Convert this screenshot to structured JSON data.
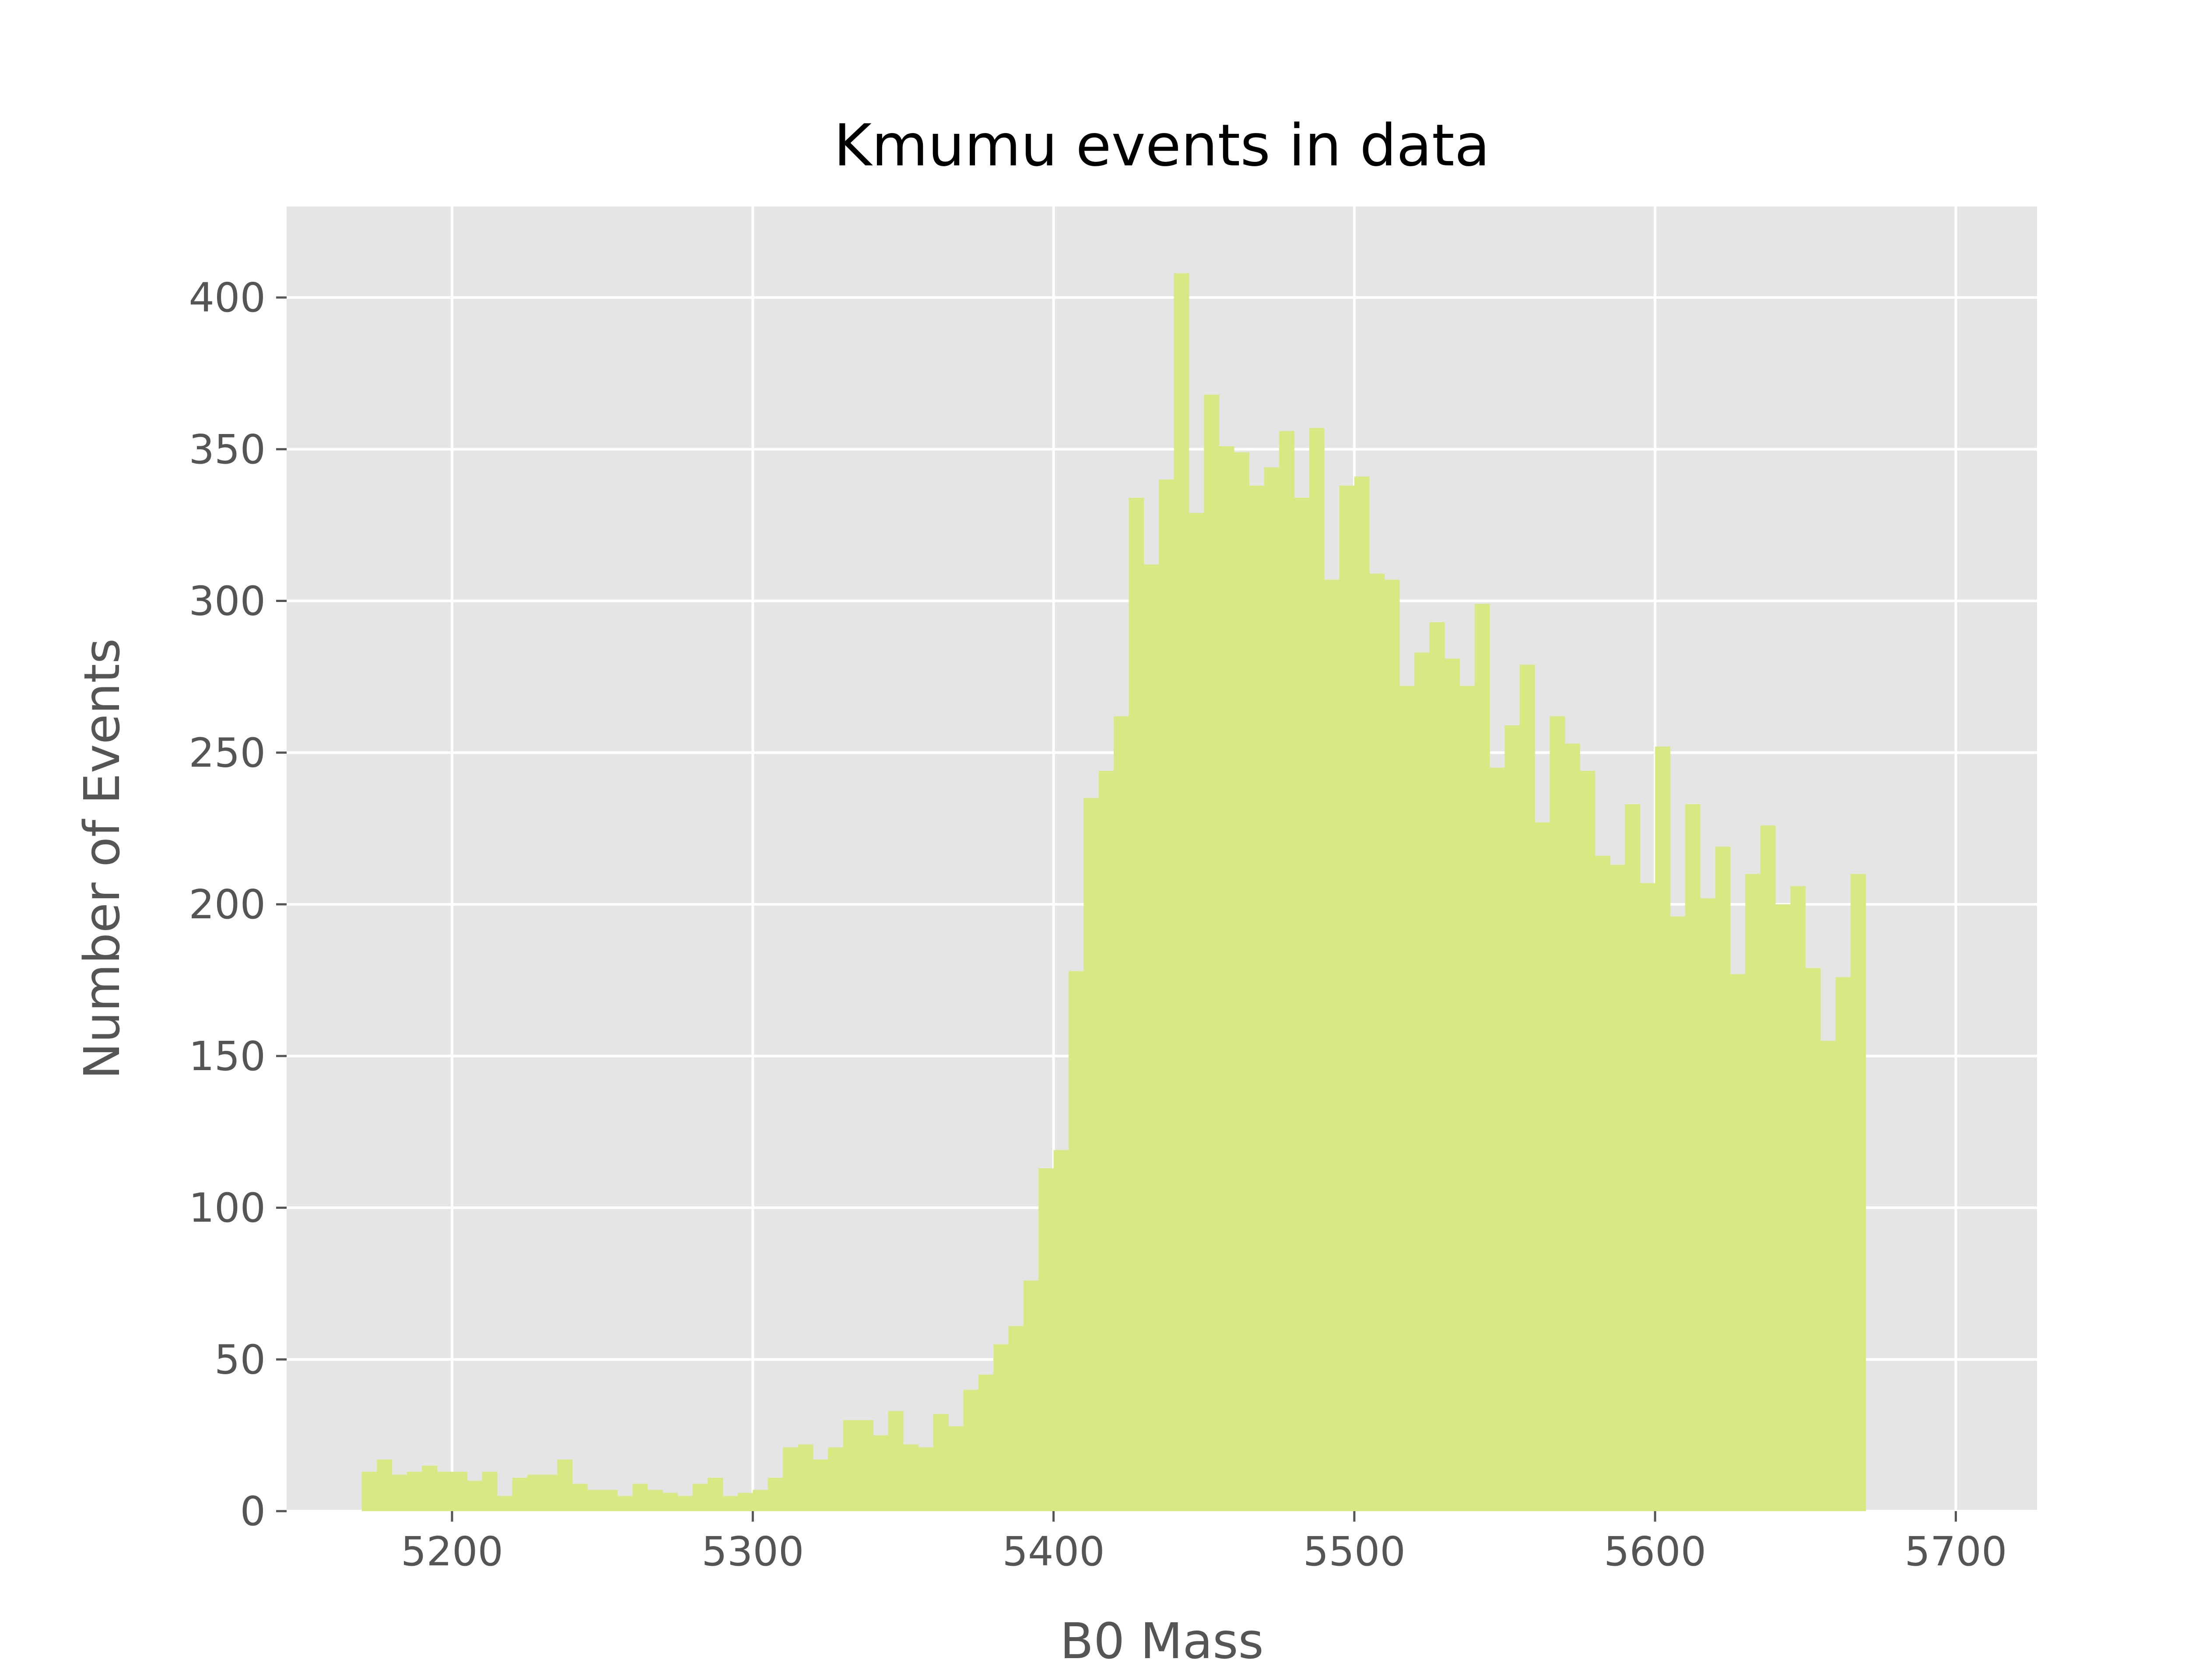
{
  "chart_data": {
    "type": "bar",
    "title": "Kmumu events in data",
    "xlabel": "B0 Mass",
    "ylabel": "Number of Events",
    "xlim": [
      5145,
      5727
    ],
    "ylim": [
      0,
      430
    ],
    "bin_start": 5170,
    "bin_width": 5,
    "grid": true,
    "bar_color": "#d9e882",
    "background_color": "#e5e5e5",
    "grid_color": "#ffffff",
    "xticks": [
      5200,
      5300,
      5400,
      5500,
      5600,
      5700
    ],
    "xtick_labels": [
      "5200",
      "5300",
      "5400",
      "5500",
      "5600",
      "5700"
    ],
    "yticks": [
      0,
      50,
      100,
      150,
      200,
      250,
      300,
      350,
      400
    ],
    "ytick_labels": [
      "0",
      "50",
      "100",
      "150",
      "200",
      "250",
      "300",
      "350",
      "400"
    ],
    "values": [
      13,
      17,
      12,
      13,
      15,
      13,
      13,
      10,
      13,
      5,
      11,
      12,
      12,
      17,
      9,
      7,
      7,
      5,
      9,
      7,
      6,
      5,
      9,
      11,
      5,
      6,
      7,
      11,
      21,
      22,
      17,
      21,
      30,
      30,
      25,
      33,
      22,
      21,
      32,
      28,
      40,
      45,
      55,
      61,
      76,
      113,
      119,
      178,
      235,
      244,
      262,
      334,
      312,
      340,
      408,
      329,
      368,
      351,
      349,
      338,
      344,
      356,
      334,
      357,
      307,
      338,
      341,
      309,
      307,
      272,
      283,
      293,
      281,
      272,
      299,
      245,
      259,
      279,
      227,
      262,
      253,
      244,
      216,
      213,
      233,
      207,
      252,
      196,
      233,
      202,
      219,
      177,
      210,
      226,
      200,
      206,
      179,
      155,
      176,
      210
    ]
  }
}
